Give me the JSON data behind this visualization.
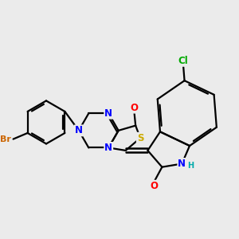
{
  "bg_color": "#ebebeb",
  "atom_colors": {
    "C": "#000000",
    "N": "#0000ff",
    "O": "#ff0000",
    "S": "#ccaa00",
    "Br": "#cc6600",
    "Cl": "#00aa00",
    "H": "#00aaaa"
  },
  "bond_color": "#000000",
  "bond_width": 1.6,
  "font_size": 8.5
}
